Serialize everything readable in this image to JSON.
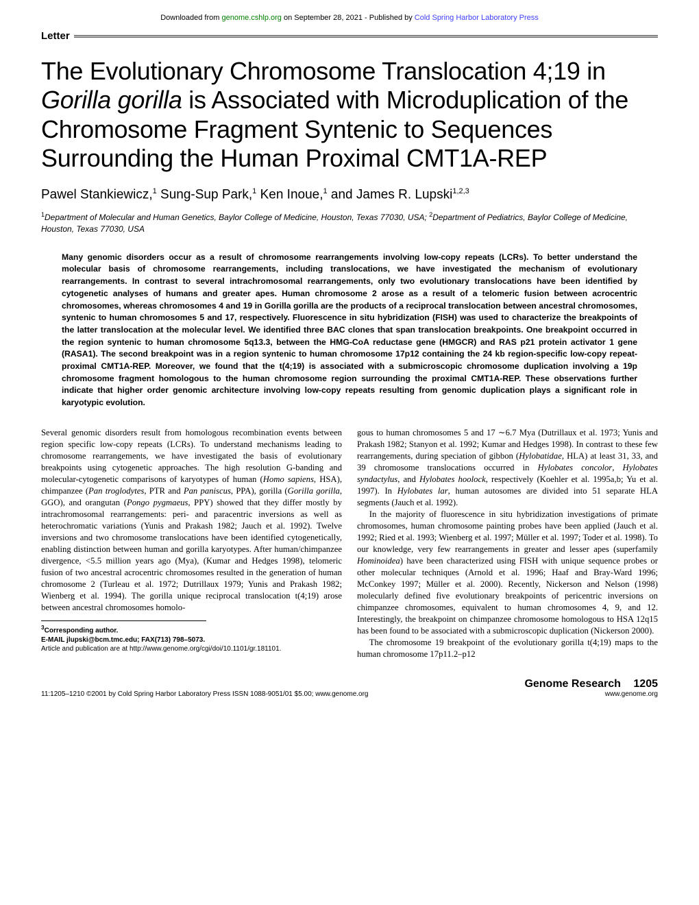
{
  "download_bar": {
    "prefix": "Downloaded from ",
    "site": "genome.cshlp.org",
    "mid": " on September 28, 2021 - Published by ",
    "publisher": "Cold Spring Harbor Laboratory Press"
  },
  "section_label": "Letter",
  "title_parts": {
    "p1": "The Evolutionary Chromosome Translocation 4;19 in ",
    "ital": "Gorilla gorilla",
    "p2": " is Associated with Microduplication of the Chromosome Fragment Syntenic to Sequences Surrounding the Human Proximal CMT1A-REP"
  },
  "authors": {
    "a1": "Pawel Stankiewicz,",
    "s1": "1",
    "a2": " Sung-Sup Park,",
    "s2": "1",
    "a3": " Ken Inoue,",
    "s3": "1",
    "a4": " and James R. Lupski",
    "s4": "1,2,3"
  },
  "affiliations": {
    "s1": "1",
    "t1": "Department of Molecular and Human Genetics, Baylor College of Medicine, Houston, Texas 77030, USA; ",
    "s2": "2",
    "t2": "Department of Pediatrics, Baylor College of Medicine, Houston, Texas 77030, USA"
  },
  "abstract": "Many genomic disorders occur as a result of chromosome rearrangements involving low-copy repeats (LCRs). To better understand the molecular basis of chromosome rearrangements, including translocations, we have investigated the mechanism of evolutionary rearrangements. In contrast to several intrachromosomal rearrangements, only two evolutionary translocations have been identified by cytogenetic analyses of humans and greater apes. Human chromosome 2 arose as a result of a telomeric fusion between acrocentric chromosomes, whereas chromosomes 4 and 19 in Gorilla gorilla are the products of a reciprocal translocation between ancestral chromosomes, syntenic to human chromosomes 5 and 17, respectively. Fluorescence in situ hybridization (FISH) was used to characterize the breakpoints of the latter translocation at the molecular level. We identified three BAC clones that span translocation breakpoints. One breakpoint occurred in the region syntenic to human chromosome 5q13.3, between the HMG-CoA reductase gene (HMGCR) and RAS p21 protein activator 1 gene (RASA1). The second breakpoint was in a region syntenic to human chromosome 17p12 containing the 24 kb region-specific low-copy repeat-proximal CMT1A-REP. Moreover, we found that the t(4;19) is associated with a submicroscopic chromosome duplication involving a 19p chromosome fragment homologous to the human chromosome region surrounding the proximal CMT1A-REP. These observations further indicate that higher order genomic architecture involving low-copy repeats resulting from genomic duplication plays a significant role in karyotypic evolution.",
  "col1": {
    "p1a": "Several genomic disorders result from homologous recombination events between region specific low-copy repeats (LCRs). To understand mechanisms leading to chromosome rearrangements, we have investigated the basis of evolutionary breakpoints using cytogenetic approaches. The high resolution G-banding and molecular-cytogenetic comparisons of karyotypes of human (",
    "i1": "Homo sapiens",
    "p1b": ", HSA), chimpanzee (",
    "i2": "Pan troglodytes",
    "p1c": ", PTR and ",
    "i3": "Pan paniscus",
    "p1d": ", PPA), gorilla (",
    "i4": "Gorilla gorilla",
    "p1e": ", GGO), and orangutan (",
    "i5": "Pongo pygmaeus",
    "p1f": ", PPY) showed that they differ mostly by intrachromosomal rearrangements: peri- and paracentric inversions as well as heterochromatic variations (Yunis and Prakash 1982; Jauch et al. 1992). Twelve inversions and two chromosome translocations have been identified cytogenetically, enabling distinction between human and gorilla karyotypes. After human/chimpanzee divergence, <5.5 million years ago (Mya), (Kumar and Hedges 1998), telomeric fusion of two ancestral acrocentric chromosomes resulted in the generation of human chromosome 2 (Turleau et al. 1972; Dutrillaux 1979; Yunis and Prakash 1982; Wienberg et al. 1994). The gorilla unique reciprocal translocation t(4;19) arose between ancestral chromosomes homolo-"
  },
  "corresponding": {
    "l1": "3",
    "l1b": "Corresponding author.",
    "l2": "E-MAIL jlupski@bcm.tmc.edu; FAX(713) 798–5073.",
    "l3": "Article and publication are at http://www.genome.org/cgi/doi/10.1101/gr.181101."
  },
  "col2": {
    "p1a": "gous to human chromosomes 5 and 17 ∼6.7 Mya (Dutrillaux et al. 1973; Yunis and Prakash 1982; Stanyon et al. 1992; Kumar and Hedges 1998). In contrast to these few rearrangements, during speciation of gibbon (",
    "i1": "Hylobatidae",
    "p1b": ", HLA) at least 31, 33, and 39 chromosome translocations occurred in ",
    "i2": "Hylobates concolor",
    "p1c": ", ",
    "i3": "Hylobates syndactylus",
    "p1d": ", and ",
    "i4": "Hylobates hoolock",
    "p1e": ", respectively (Koehler et al. 1995a,b; Yu et al. 1997). In ",
    "i5": "Hylobates lar",
    "p1f": ", human autosomes are divided into 51 separate HLA segments (Jauch et al. 1992).",
    "p2a": "In the majority of fluorescence in situ hybridization investigations of primate chromosomes, human chromosome painting probes have been applied (Jauch et al. 1992; Ried et al. 1993; Wienberg et al. 1997; Müller et al. 1997; Toder et al. 1998). To our knowledge, very few rearrangements in greater and lesser apes (superfamily ",
    "i6": "Hominoidea",
    "p2b": ") have been characterized using FISH with unique sequence probes or other molecular techniques (Arnold et al. 1996; Haaf and Bray-Ward 1996; McConkey 1997; Müller et al. 2000). Recently, Nickerson and Nelson (1998) molecularly defined five evolutionary breakpoints of pericentric inversions on chimpanzee chromosomes, equivalent to human chromosomes 4, 9, and 12. Interestingly, the breakpoint on chimpanzee chromosome homologous to HSA 12q15 has been found to be associated with a submicroscopic duplication (Nickerson 2000).",
    "p3": "The chromosome 19 breakpoint of the evolutionary gorilla t(4;19) maps to the human chromosome 17p11.2–p12"
  },
  "footer": {
    "left": "11:1205–1210 ©2001 by Cold Spring Harbor Laboratory Press ISSN 1088-9051/01 $5.00; www.genome.org",
    "journal": "Genome Research",
    "page": "1205",
    "url": "www.genome.org"
  }
}
